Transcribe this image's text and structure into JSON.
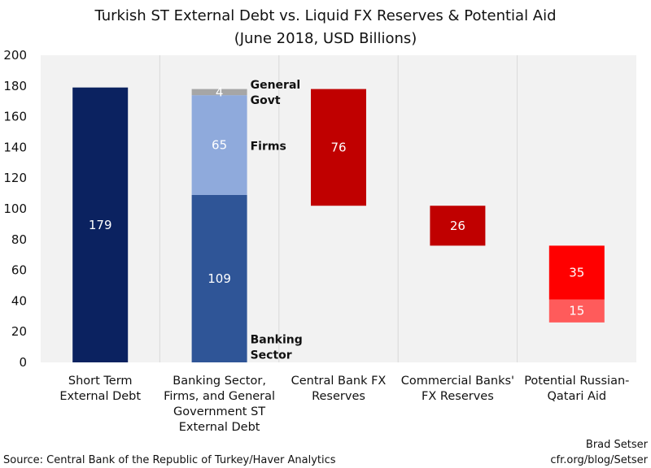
{
  "chart_data": {
    "type": "bar",
    "title": "Turkish ST External Debt vs. Liquid FX Reserves &  Potential Aid",
    "subtitle": "(June 2018, USD Billions)",
    "ylim": [
      0,
      200
    ],
    "yticks": [
      0,
      20,
      40,
      60,
      80,
      100,
      120,
      140,
      160,
      180,
      200
    ],
    "grid": "vertical-separators",
    "categories": [
      [
        "Short Term",
        "External Debt"
      ],
      [
        "Banking Sector,",
        "Firms, and General",
        "Government ST",
        "External Debt"
      ],
      [
        "Central Bank FX",
        "Reserves"
      ],
      [
        "Commercial Banks'",
        "FX Reserves"
      ],
      [
        "Potential Russian-",
        "Qatari Aid"
      ]
    ],
    "segments": [
      {
        "category": 0,
        "start": 0,
        "value": 179,
        "label": "179",
        "color": "#0b2260"
      },
      {
        "category": 1,
        "start": 0,
        "value": 109,
        "label": "109",
        "color": "#2f5597"
      },
      {
        "category": 1,
        "start": 109,
        "value": 65,
        "label": "65",
        "color": "#8faadc"
      },
      {
        "category": 1,
        "start": 174,
        "value": 4,
        "label": "4",
        "color": "#a6a6a6"
      },
      {
        "category": 2,
        "start": 102,
        "value": 76,
        "label": "76",
        "color": "#c00000"
      },
      {
        "category": 3,
        "start": 76,
        "value": 26,
        "label": "26",
        "color": "#c00000"
      },
      {
        "category": 4,
        "start": 26,
        "value": 15,
        "label": "15",
        "color": "#ff5b5b"
      },
      {
        "category": 4,
        "start": 41,
        "value": 35,
        "label": "35",
        "color": "#ff0000"
      }
    ],
    "annotations": [
      {
        "lines": [
          "General",
          "Govt"
        ],
        "category": 1,
        "at": 176
      },
      {
        "lines": [
          "Firms"
        ],
        "category": 1,
        "at": 141
      },
      {
        "lines": [
          "Banking",
          "Sector"
        ],
        "category": 1,
        "at": 10
      }
    ]
  },
  "footer": {
    "source": "Source: Central Bank of the Republic of Turkey/Haver Analytics",
    "author": "Brad Setser",
    "site": "cfr.org/blog/Setser"
  }
}
